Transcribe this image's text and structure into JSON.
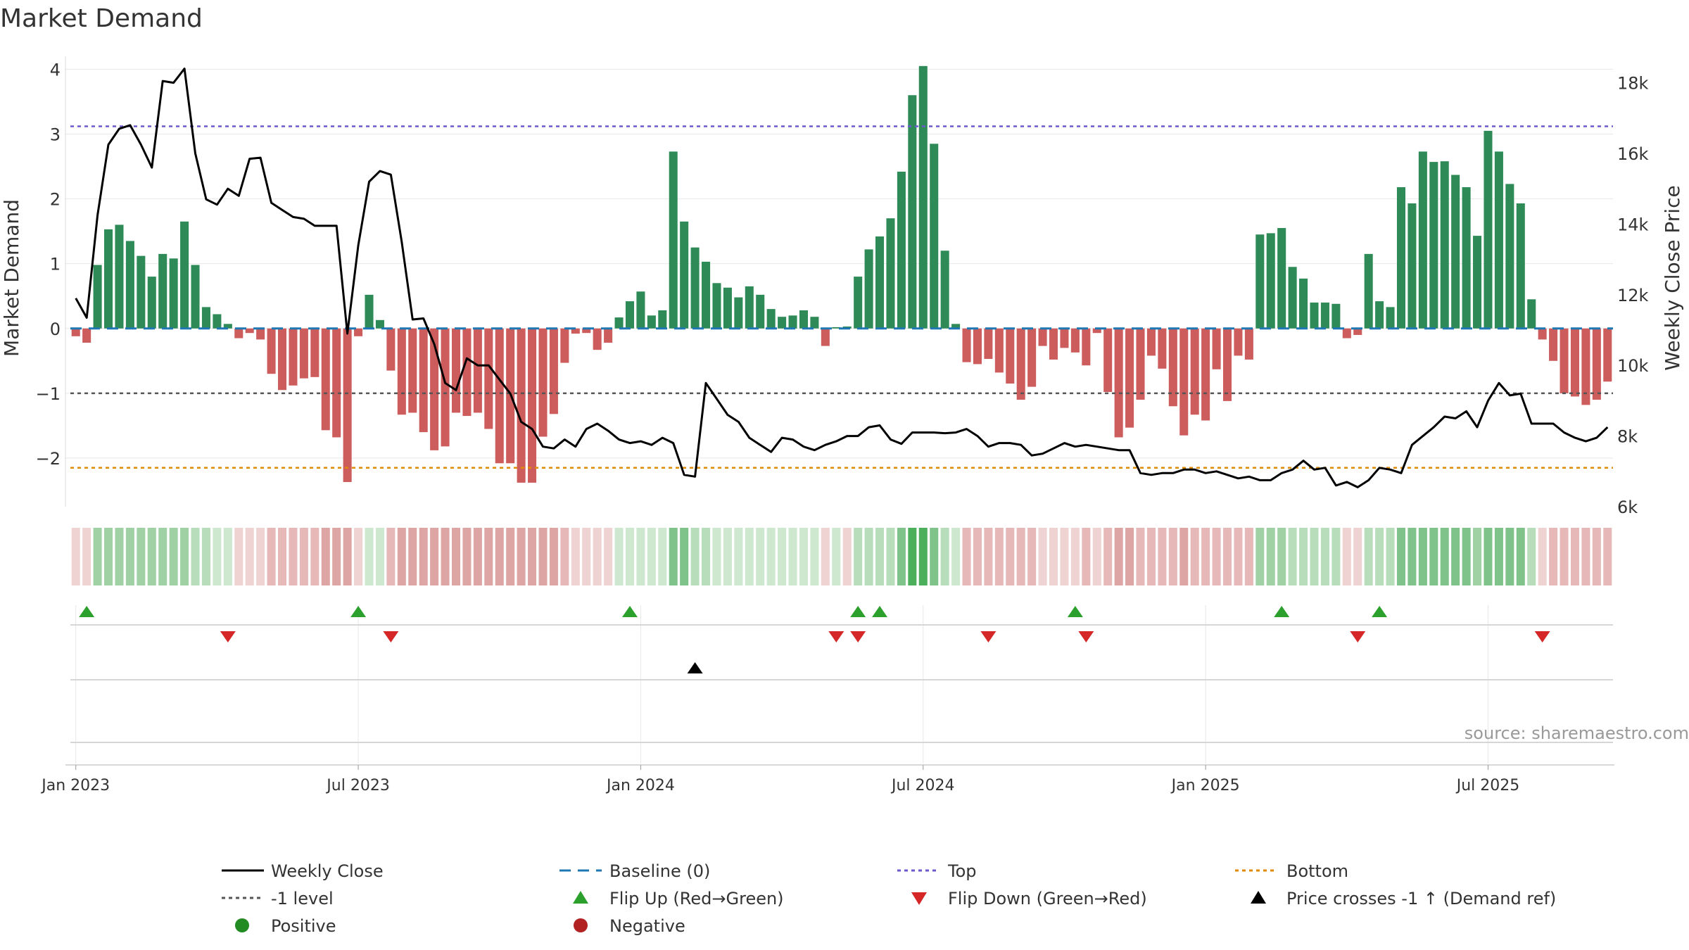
{
  "chart_data": {
    "type": "bar",
    "title": "Market Demand",
    "ylabel_left": "Market Demand",
    "ylabel_right": "Weekly Close Price",
    "source": "source: sharemaestro.com",
    "ylim_left": [
      -2.75,
      4.2
    ],
    "ylim_right": [
      6000,
      18750
    ],
    "left_ticks": [
      {
        "value": 4,
        "label": "4"
      },
      {
        "value": 3,
        "label": "3"
      },
      {
        "value": 2,
        "label": "2"
      },
      {
        "value": 1,
        "label": "1"
      },
      {
        "value": 0,
        "label": "0"
      },
      {
        "value": -1,
        "label": "−1"
      },
      {
        "value": -2,
        "label": "−2"
      }
    ],
    "right_ticks": [
      {
        "value": 18000,
        "label": "18k"
      },
      {
        "value": 16000,
        "label": "16k"
      },
      {
        "value": 14000,
        "label": "14k"
      },
      {
        "value": 12000,
        "label": "12k"
      },
      {
        "value": 10000,
        "label": "10k"
      },
      {
        "value": 8000,
        "label": "8k"
      },
      {
        "value": 6000,
        "label": "6k"
      }
    ],
    "x_ticks": [
      {
        "week": 1,
        "label": "Jan 2023"
      },
      {
        "week": 27,
        "label": "Jul 2023"
      },
      {
        "week": 53,
        "label": "Jan 2024"
      },
      {
        "week": 79,
        "label": "Jul 2024"
      },
      {
        "week": 105,
        "label": "Jan 2025"
      },
      {
        "week": 131,
        "label": "Jul 2025"
      }
    ],
    "top_level": 3.12,
    "minus1_level": -1,
    "bottom_level": -2.15,
    "demand": [
      -0.12,
      -0.22,
      0.98,
      1.53,
      1.6,
      1.35,
      1.12,
      0.8,
      1.15,
      1.08,
      1.65,
      0.98,
      0.33,
      0.22,
      0.07,
      -0.15,
      -0.07,
      -0.17,
      -0.7,
      -0.95,
      -0.88,
      -0.77,
      -0.75,
      -1.57,
      -1.68,
      -2.37,
      -0.12,
      0.52,
      0.13,
      -0.65,
      -1.33,
      -1.3,
      -1.6,
      -1.88,
      -1.82,
      -1.3,
      -1.35,
      -1.3,
      -1.55,
      -2.08,
      -2.08,
      -2.38,
      -2.38,
      -1.67,
      -1.32,
      -0.53,
      -0.08,
      -0.07,
      -0.33,
      -0.22,
      0.17,
      0.42,
      0.57,
      0.2,
      0.28,
      2.73,
      1.65,
      1.25,
      1.03,
      0.7,
      0.63,
      0.48,
      0.65,
      0.52,
      0.3,
      0.18,
      0.2,
      0.28,
      0.18,
      -0.27,
      0.02,
      0.03,
      0.8,
      1.22,
      1.42,
      1.7,
      2.42,
      3.6,
      4.05,
      2.85,
      1.2,
      0.07,
      -0.52,
      -0.55,
      -0.47,
      -0.68,
      -0.85,
      -1.1,
      -0.9,
      -0.27,
      -0.48,
      -0.3,
      -0.37,
      -0.57,
      -0.07,
      -0.98,
      -1.68,
      -1.53,
      -1.1,
      -0.42,
      -0.62,
      -1.2,
      -1.65,
      -1.33,
      -1.42,
      -0.63,
      -1.12,
      -0.42,
      -0.48,
      1.45,
      1.47,
      1.55,
      0.95,
      0.77,
      0.4,
      0.4,
      0.38,
      -0.15,
      -0.1,
      1.15,
      0.42,
      0.33,
      2.18,
      1.93,
      2.73,
      2.57,
      2.58,
      2.37,
      2.18,
      1.43,
      3.05,
      2.73,
      2.23,
      1.93,
      0.45,
      -0.17,
      -0.5,
      -1.0,
      -1.05,
      -1.18,
      -1.1,
      -0.82
    ],
    "price": [
      11900,
      11350,
      14250,
      16250,
      16700,
      16800,
      16250,
      15600,
      18050,
      18000,
      18400,
      16000,
      14700,
      14550,
      15000,
      14800,
      15850,
      15880,
      14600,
      14400,
      14200,
      14150,
      13950,
      13950,
      13950,
      10900,
      13400,
      15200,
      15500,
      15400,
      13500,
      11300,
      11330,
      10600,
      9500,
      9300,
      10200,
      10000,
      10000,
      9600,
      9200,
      8400,
      8200,
      7700,
      7650,
      7900,
      7700,
      8200,
      8350,
      8150,
      7900,
      7800,
      7850,
      7750,
      7950,
      7800,
      6900,
      6850,
      9500,
      9050,
      8600,
      8400,
      7950,
      7750,
      7550,
      7950,
      7900,
      7700,
      7600,
      7750,
      7850,
      8000,
      8000,
      8250,
      8300,
      7900,
      7780,
      8100,
      8100,
      8100,
      8080,
      8100,
      8200,
      8000,
      7700,
      7800,
      7800,
      7750,
      7450,
      7500,
      7650,
      7800,
      7700,
      7750,
      7700,
      7650,
      7600,
      7600,
      6950,
      6900,
      6950,
      6950,
      7050,
      7050,
      6950,
      7000,
      6900,
      6800,
      6850,
      6750,
      6750,
      6950,
      7050,
      7300,
      7050,
      7100,
      6600,
      6700,
      6550,
      6750,
      7100,
      7050,
      6950,
      7750,
      8000,
      8250,
      8550,
      8500,
      8700,
      8250,
      9000,
      9500,
      9150,
      9200,
      8350,
      8350,
      8350,
      8100,
      7950,
      7850,
      7950,
      8250
    ],
    "shade_colors": [
      "#efd3d3",
      "#efd3d3",
      "#9fd1a5",
      "#9fd1a5",
      "#9fd1a5",
      "#9fd1a5",
      "#9fd1a5",
      "#9fd1a5",
      "#9fd1a5",
      "#9fd1a5",
      "#9fd1a5",
      "#b7ddbb",
      "#b7ddbb",
      "#cde8cf",
      "#cde8cf",
      "#efd3d3",
      "#efd3d3",
      "#efd3d3",
      "#e6b8b8",
      "#e6b8b8",
      "#e6b8b8",
      "#e6b8b8",
      "#e6b8b8",
      "#dea5a5",
      "#dea5a5",
      "#dea5a5",
      "#efd3d3",
      "#cde8cf",
      "#cde8cf",
      "#e6b8b8",
      "#dea5a5",
      "#dea5a5",
      "#dea5a5",
      "#dea5a5",
      "#dea5a5",
      "#dea5a5",
      "#dea5a5",
      "#dea5a5",
      "#dea5a5",
      "#dea5a5",
      "#dea5a5",
      "#dea5a5",
      "#dea5a5",
      "#dea5a5",
      "#dea5a5",
      "#e6b8b8",
      "#efd3d3",
      "#efd3d3",
      "#efd3d3",
      "#efd3d3",
      "#cde8cf",
      "#cde8cf",
      "#cde8cf",
      "#cde8cf",
      "#cde8cf",
      "#7fc28a",
      "#7fc28a",
      "#b7ddbb",
      "#b7ddbb",
      "#cde8cf",
      "#cde8cf",
      "#cde8cf",
      "#cde8cf",
      "#cde8cf",
      "#cde8cf",
      "#cde8cf",
      "#cde8cf",
      "#cde8cf",
      "#cde8cf",
      "#efd3d3",
      "#cde8cf",
      "#efd3d3",
      "#b7ddbb",
      "#b7ddbb",
      "#b7ddbb",
      "#b7ddbb",
      "#7fc28a",
      "#4caf5c",
      "#4caf5c",
      "#7fc28a",
      "#b7ddbb",
      "#cde8cf",
      "#e6b8b8",
      "#e6b8b8",
      "#e6b8b8",
      "#e6b8b8",
      "#e6b8b8",
      "#e6b8b8",
      "#e6b8b8",
      "#efd3d3",
      "#efd3d3",
      "#efd3d3",
      "#efd3d3",
      "#e6b8b8",
      "#efd3d3",
      "#e6b8b8",
      "#dea5a5",
      "#dea5a5",
      "#e6b8b8",
      "#e6b8b8",
      "#e6b8b8",
      "#e6b8b8",
      "#dea5a5",
      "#e6b8b8",
      "#e6b8b8",
      "#e6b8b8",
      "#e6b8b8",
      "#e6b8b8",
      "#e6b8b8",
      "#9fd1a5",
      "#9fd1a5",
      "#9fd1a5",
      "#b7ddbb",
      "#b7ddbb",
      "#b7ddbb",
      "#b7ddbb",
      "#b7ddbb",
      "#efd3d3",
      "#efd3d3",
      "#b7ddbb",
      "#b7ddbb",
      "#b7ddbb",
      "#7fc28a",
      "#7fc28a",
      "#7fc28a",
      "#7fc28a",
      "#7fc28a",
      "#7fc28a",
      "#7fc28a",
      "#9fd1a5",
      "#7fc28a",
      "#7fc28a",
      "#7fc28a",
      "#7fc28a",
      "#b7ddbb",
      "#efd3d3",
      "#e6b8b8",
      "#e6b8b8",
      "#e6b8b8",
      "#e6b8b8",
      "#e6b8b8",
      "#e6b8b8"
    ],
    "flip_up_weeks": [
      2,
      27,
      52,
      73,
      75,
      93,
      112,
      121
    ],
    "flip_down_weeks": [
      15,
      30,
      71,
      73,
      85,
      94,
      119,
      136
    ],
    "price_cross_weeks": [
      58
    ],
    "colors": {
      "positive": "#2e8b57",
      "negative": "#cd5c5c",
      "price": "#000000",
      "baseline": "#1f77b4",
      "top": "#6a5acd",
      "minus1": "#555555",
      "bottom": "#e08a00",
      "flip_up": "#2ca02c",
      "flip_down": "#d62728",
      "cross": "#000000",
      "legend_positive": "#228b22",
      "legend_negative": "#b22222"
    }
  },
  "legend": {
    "weekly_close": "Weekly Close",
    "baseline": "Baseline (0)",
    "top": "Top",
    "bottom": "Bottom",
    "minus1": "-1 level",
    "flip_up": "Flip Up (Red→Green)",
    "flip_down": "Flip Down (Green→Red)",
    "price_cross": "Price crosses -1 ↑ (Demand ref)",
    "positive": "Positive",
    "negative": "Negative"
  }
}
